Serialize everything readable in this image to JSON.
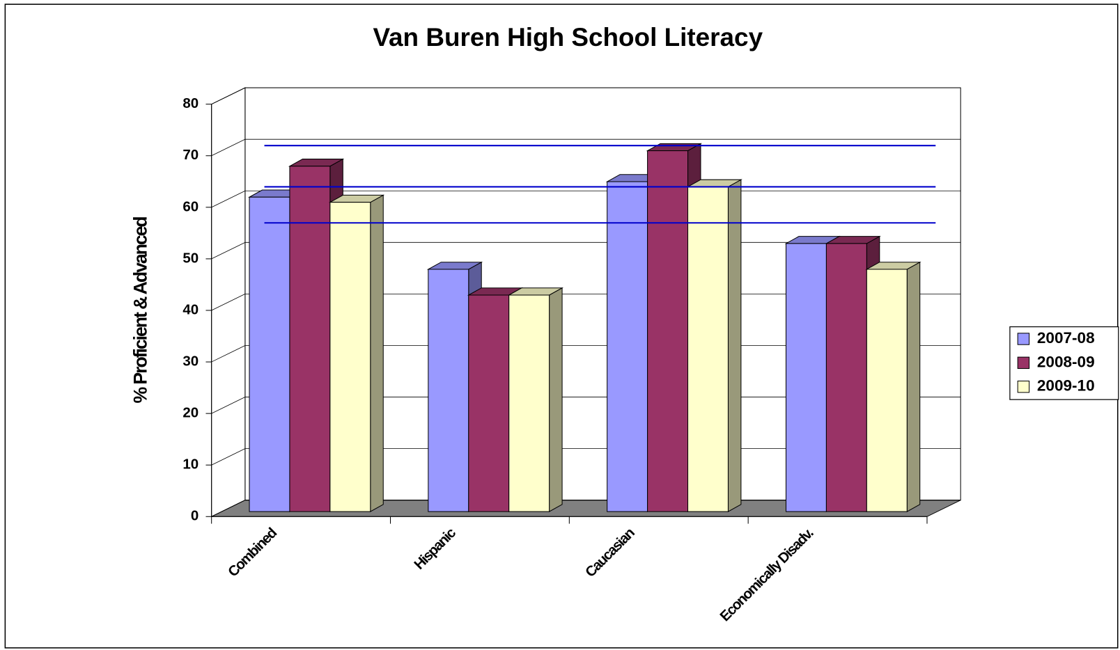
{
  "chart_data": {
    "type": "bar3d",
    "title": "Van Buren High School Literacy",
    "y_label": "% Proficient & Advanced",
    "categories": [
      "Combined",
      "Hispanic",
      "Caucasian",
      "Economically Disadv."
    ],
    "series": [
      {
        "name": "2007-08",
        "color": "#9999ff",
        "values": [
          61,
          47,
          64,
          52
        ]
      },
      {
        "name": "2008-09",
        "color": "#993366",
        "values": [
          67,
          42,
          70,
          52
        ]
      },
      {
        "name": "2009-10",
        "color": "#ffffcc",
        "values": [
          60,
          42,
          63,
          47
        ]
      }
    ],
    "reference_lines": [
      71,
      63,
      56
    ],
    "reference_color": "#0000cc",
    "ylim": [
      0,
      80
    ],
    "yticks": [
      0,
      10,
      20,
      30,
      40,
      50,
      60,
      70,
      80
    ],
    "grid": true,
    "legend": "right"
  }
}
